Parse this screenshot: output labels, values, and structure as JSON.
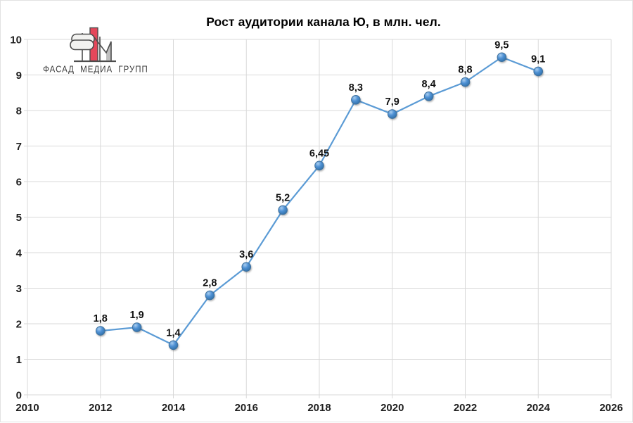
{
  "logo": {
    "text": "ФАСАД МЕДИА ГРУПП",
    "red": "#e5475a",
    "outline": "#4d4d4d",
    "gray": "#bfbfbf",
    "pill_fill": "#f2f2f0"
  },
  "chart_data": {
    "type": "line",
    "title": "Рост аудитории канала Ю, в млн. чел.",
    "x": [
      2012,
      2013,
      2014,
      2015,
      2016,
      2017,
      2018,
      2019,
      2020,
      2021,
      2022,
      2023,
      2024
    ],
    "values": [
      1.8,
      1.9,
      1.4,
      2.8,
      3.6,
      5.2,
      6.45,
      8.3,
      7.9,
      8.4,
      8.8,
      9.5,
      9.1
    ],
    "point_labels": [
      "1,8",
      "1,9",
      "1,4",
      "2,8",
      "3,6",
      "5,2",
      "6,45",
      "8,3",
      "7,9",
      "8,4",
      "8,8",
      "9,5",
      "9,1"
    ],
    "xlabel": "",
    "ylabel": "",
    "xlim": [
      2010,
      2026
    ],
    "ylim": [
      0,
      10
    ],
    "x_ticks": [
      2010,
      2012,
      2014,
      2016,
      2018,
      2020,
      2022,
      2024,
      2026
    ],
    "x_tick_labels": [
      "2010",
      "2012",
      "2014",
      "2016",
      "2018",
      "2020",
      "2022",
      "2024",
      "2026"
    ],
    "y_ticks": [
      0,
      1,
      2,
      3,
      4,
      5,
      6,
      7,
      8,
      9,
      10
    ],
    "y_tick_labels": [
      "0",
      "1",
      "2",
      "3",
      "4",
      "5",
      "6",
      "7",
      "8",
      "9",
      "10"
    ],
    "grid": true,
    "legend": "none",
    "line_color": "#5b9bd5",
    "marker_border": "#41719c",
    "marker_fill_light": "#a9cef0",
    "marker_fill_mid": "#4f91d4",
    "marker_fill_dark": "#2e6da4",
    "gridline_color": "#d9d9d9"
  }
}
